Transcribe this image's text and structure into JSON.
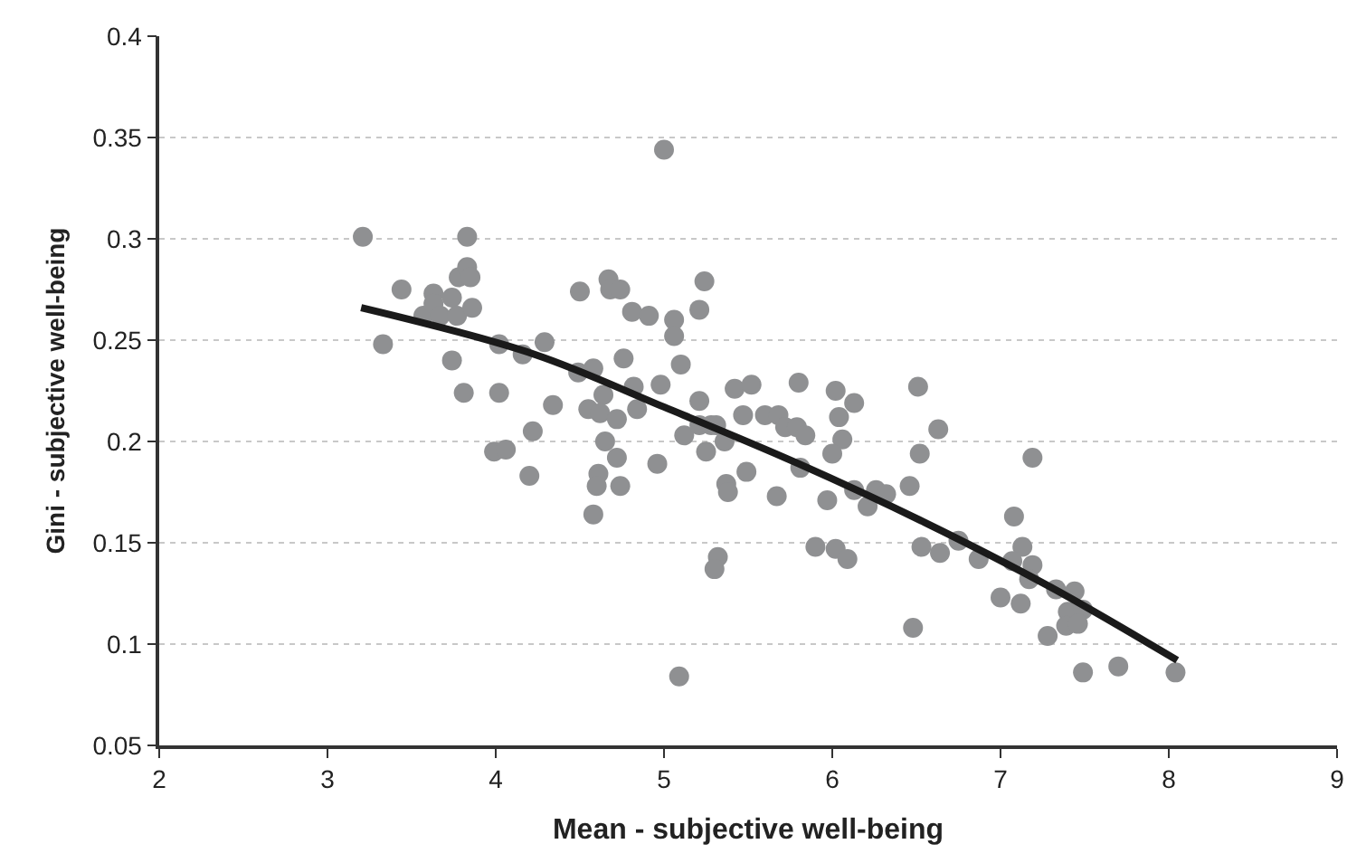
{
  "chart_data": {
    "type": "scatter",
    "xlabel": "Mean - subjective well-being",
    "ylabel": "Gini - subjective well-being",
    "xlim": [
      2,
      9
    ],
    "xticks": [
      2,
      3,
      4,
      5,
      6,
      7,
      8,
      9
    ],
    "ylim": [
      0.05,
      0.4
    ],
    "yticks": [
      0.05,
      0.1,
      0.15,
      0.2,
      0.25,
      0.3,
      0.35,
      0.4
    ],
    "grid": "y",
    "marker": "circle",
    "series": [
      {
        "color": "#8f9092",
        "x": [
          3.21,
          3.33,
          3.44,
          3.57,
          3.63,
          3.63,
          3.67,
          3.74,
          3.77,
          3.78,
          3.83,
          3.83,
          3.85,
          3.86,
          3.74,
          3.81,
          4.02,
          4.02,
          4.16,
          4.29,
          4.34,
          4.22,
          3.99,
          4.06,
          4.2,
          5.0,
          4.5,
          4.67,
          4.68,
          4.74,
          4.81,
          4.91,
          5.06,
          5.06,
          5.1,
          5.21,
          5.24,
          4.49,
          4.58,
          4.76,
          4.64,
          4.82,
          4.98,
          4.55,
          4.62,
          4.72,
          4.84,
          4.65,
          4.72,
          4.61,
          4.6,
          4.74,
          4.58,
          4.96,
          5.12,
          5.21,
          5.21,
          5.28,
          5.25,
          5.31,
          5.36,
          5.42,
          5.52,
          5.47,
          5.6,
          5.68,
          5.72,
          5.8,
          5.79,
          5.84,
          5.81,
          5.49,
          5.37,
          5.38,
          5.32,
          5.3,
          5.09,
          5.67,
          5.97,
          5.9,
          6.02,
          6.09,
          6.02,
          6.04,
          6.13,
          6.06,
          6.0,
          6.13,
          6.21,
          6.26,
          6.32,
          6.46,
          6.51,
          6.52,
          6.53,
          6.48,
          6.63,
          6.64,
          6.75,
          6.87,
          7.0,
          7.12,
          7.08,
          7.13,
          7.07,
          7.19,
          7.17,
          7.19,
          7.33,
          7.44,
          7.4,
          7.49,
          7.39,
          7.46,
          7.28,
          7.49,
          7.7,
          8.04
        ],
        "values": [
          0.301,
          0.248,
          0.275,
          0.262,
          0.273,
          0.268,
          0.262,
          0.271,
          0.262,
          0.281,
          0.301,
          0.286,
          0.281,
          0.266,
          0.24,
          0.224,
          0.248,
          0.224,
          0.243,
          0.249,
          0.218,
          0.205,
          0.195,
          0.196,
          0.183,
          0.344,
          0.274,
          0.28,
          0.275,
          0.275,
          0.264,
          0.262,
          0.26,
          0.252,
          0.238,
          0.265,
          0.279,
          0.234,
          0.236,
          0.241,
          0.223,
          0.227,
          0.228,
          0.216,
          0.214,
          0.211,
          0.216,
          0.2,
          0.192,
          0.184,
          0.178,
          0.178,
          0.164,
          0.189,
          0.203,
          0.22,
          0.208,
          0.208,
          0.195,
          0.208,
          0.2,
          0.226,
          0.228,
          0.213,
          0.213,
          0.213,
          0.207,
          0.229,
          0.207,
          0.203,
          0.187,
          0.185,
          0.179,
          0.175,
          0.143,
          0.137,
          0.084,
          0.173,
          0.171,
          0.148,
          0.147,
          0.142,
          0.225,
          0.212,
          0.219,
          0.201,
          0.194,
          0.176,
          0.168,
          0.176,
          0.174,
          0.178,
          0.227,
          0.194,
          0.148,
          0.108,
          0.206,
          0.145,
          0.151,
          0.142,
          0.123,
          0.12,
          0.163,
          0.148,
          0.141,
          0.139,
          0.132,
          0.192,
          0.127,
          0.126,
          0.116,
          0.117,
          0.109,
          0.11,
          0.104,
          0.086,
          0.089,
          0.086
        ]
      },
      {
        "type": "line",
        "color": "#1a1a1a",
        "marker": "none",
        "x": [
          3.2,
          4.23,
          5.0,
          5.8,
          6.55,
          7.3,
          8.05
        ],
        "values": [
          0.266,
          0.243,
          0.217,
          0.189,
          0.16,
          0.128,
          0.092
        ]
      }
    ]
  }
}
